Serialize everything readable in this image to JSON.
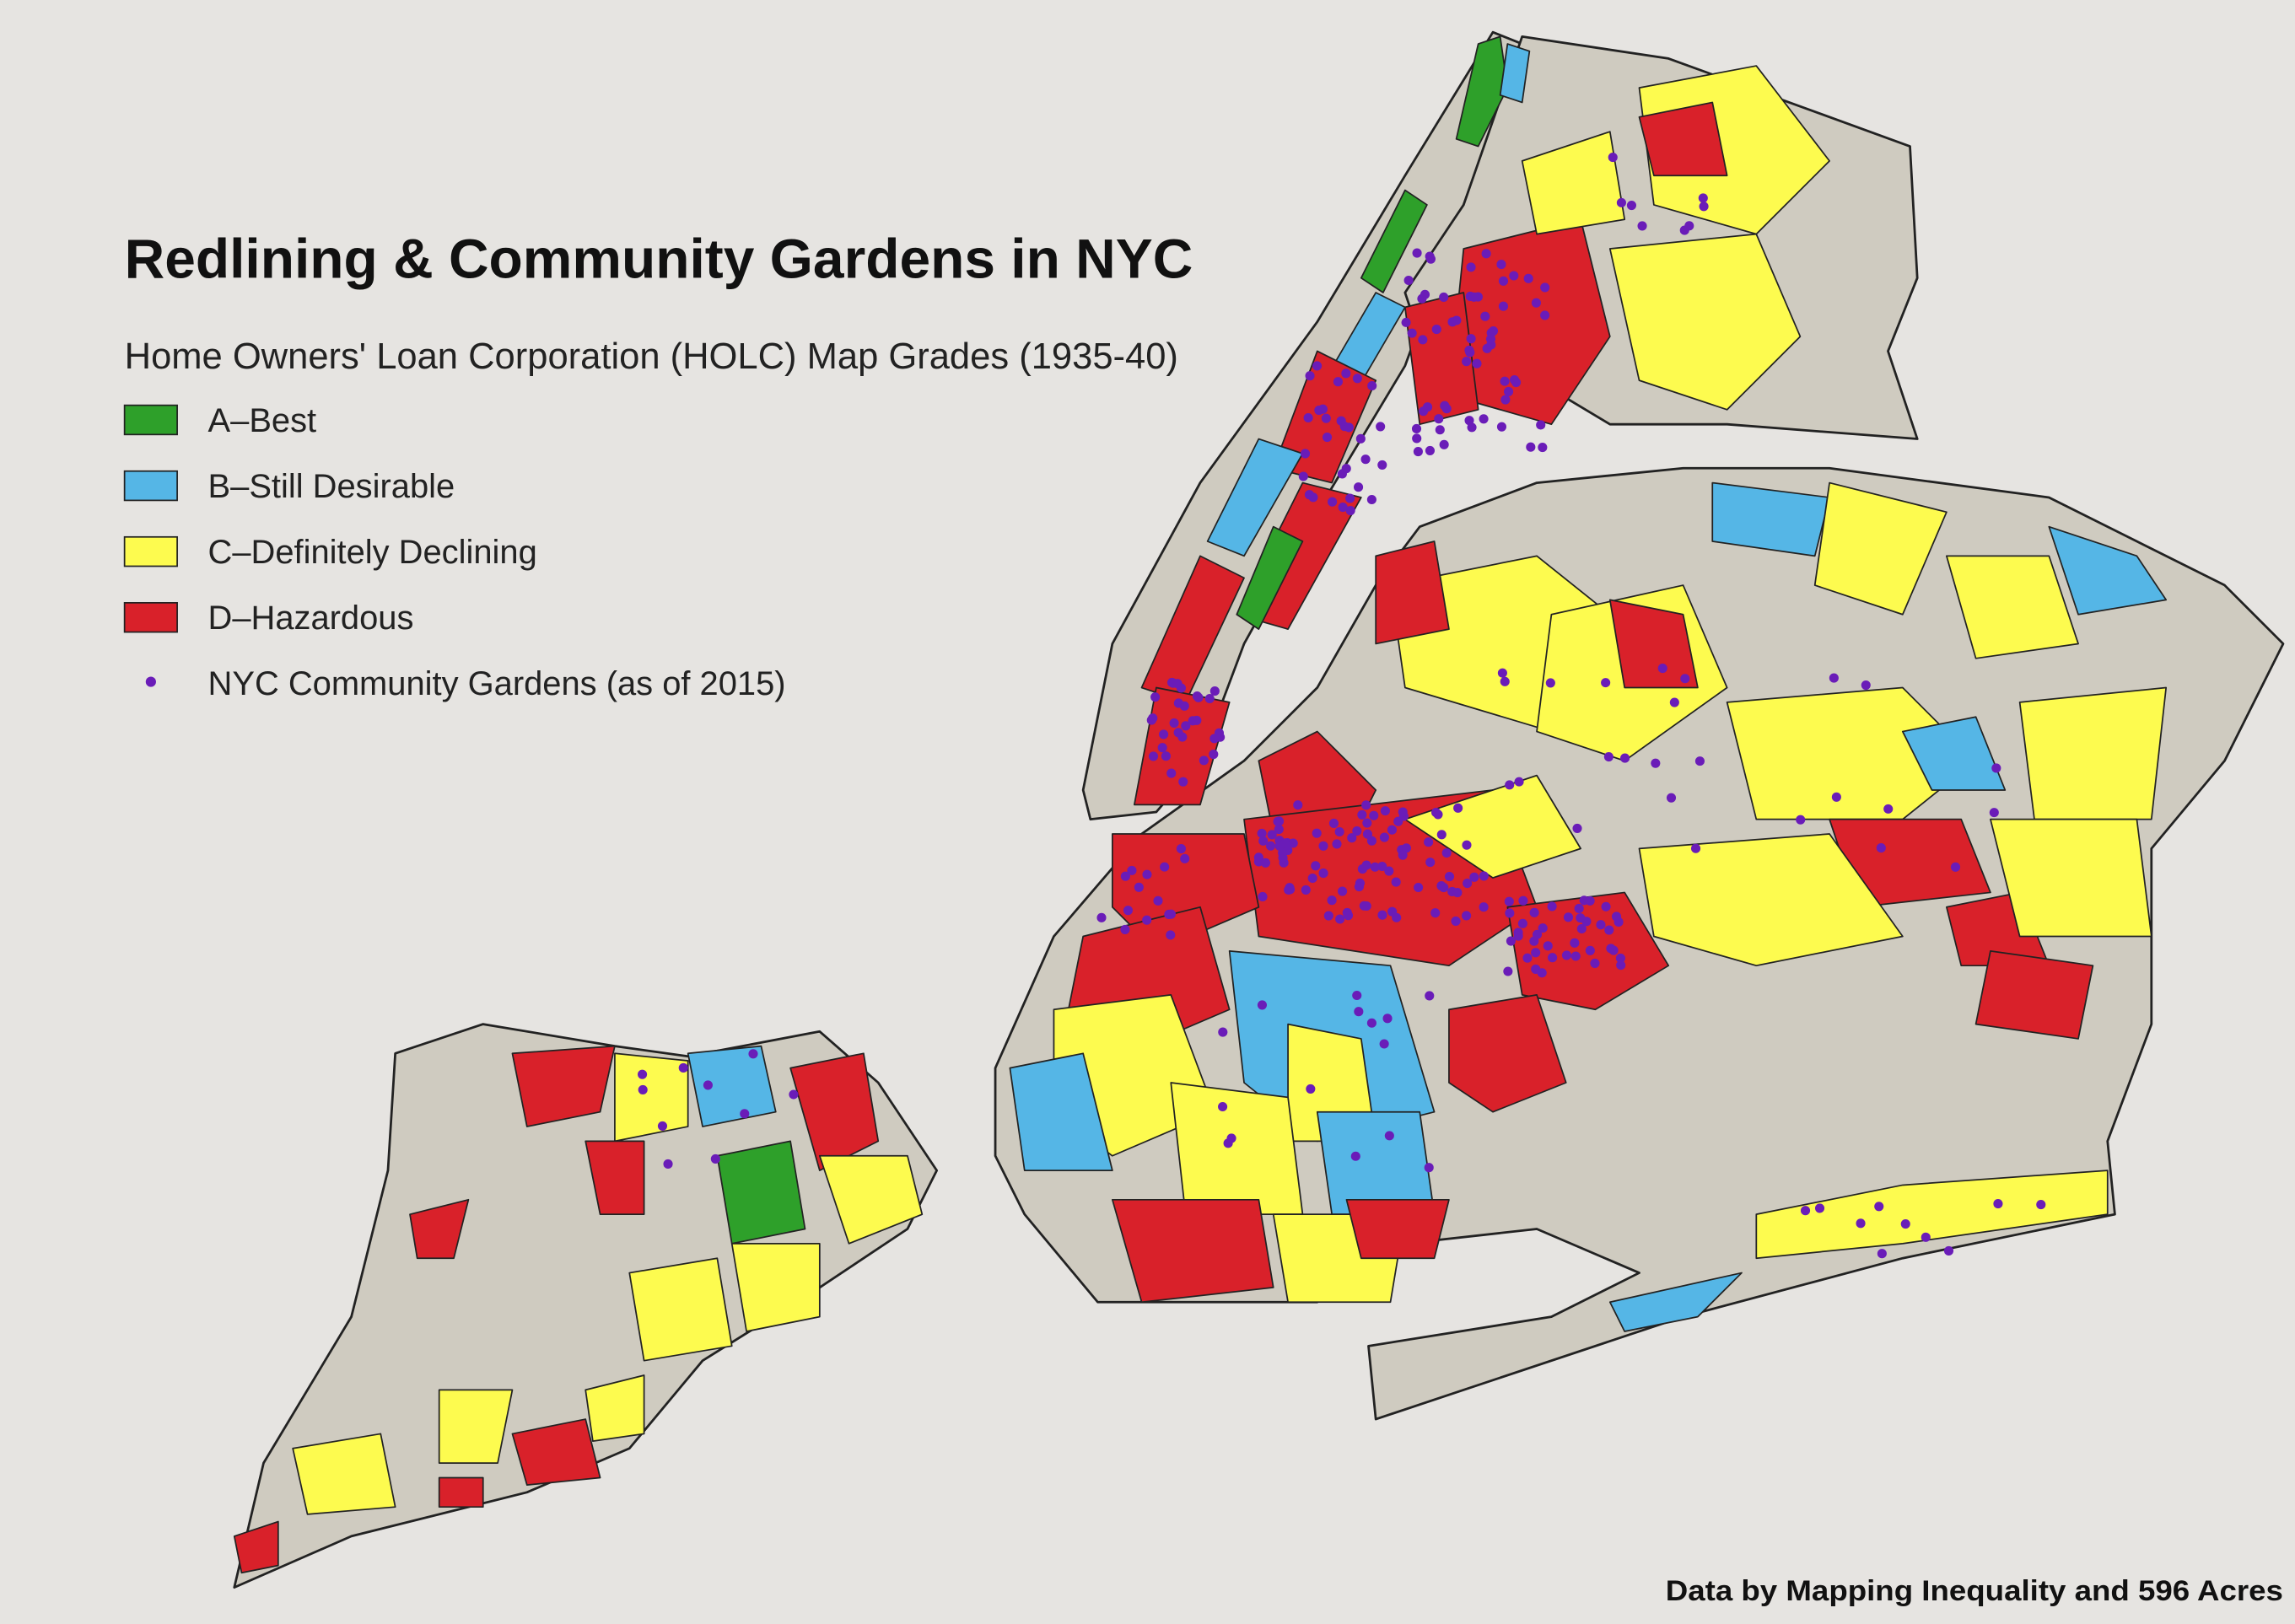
{
  "title": "Redlining & Community Gardens in NYC",
  "subtitle": "Home Owners' Loan Corporation (HOLC) Map Grades (1935-40)",
  "legend": [
    {
      "label": "A–Best",
      "color": "#2ea02a"
    },
    {
      "label": "B–Still Desirable",
      "color": "#55b6e6"
    },
    {
      "label": "C–Definitely Declining",
      "color": "#fdfb4f"
    },
    {
      "label": "D–Hazardous",
      "color": "#d9212a"
    }
  ],
  "gardens": {
    "label": "NYC Community Gardens (as of 2015)",
    "color": "#6a1cb8"
  },
  "credit": "Data by Mapping Inequality and 596 Acres"
}
